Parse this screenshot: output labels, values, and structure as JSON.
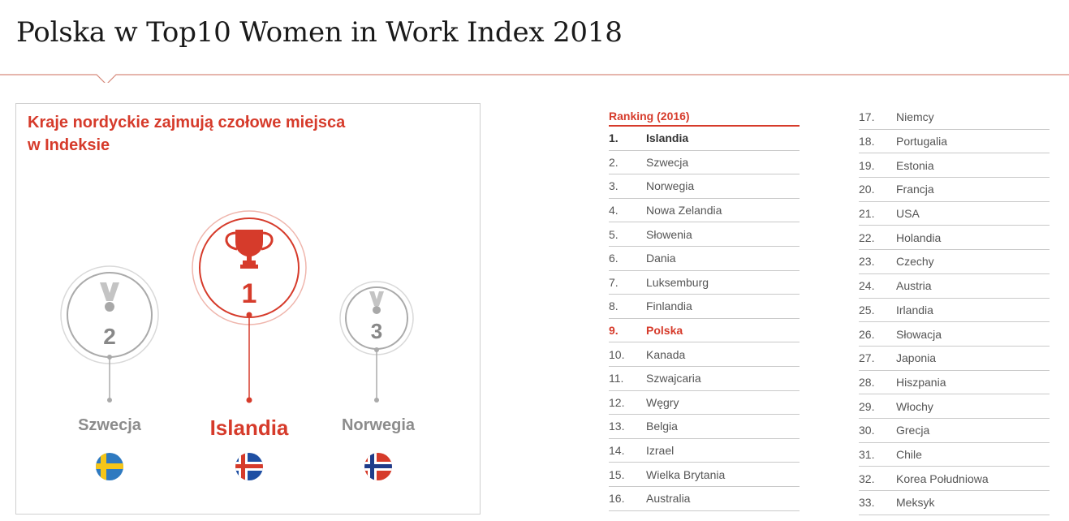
{
  "header": {
    "title": "Polska w Top10 Women in Work Index 2018"
  },
  "podium": {
    "heading_line1": "Kraje nordyckie zajmują czołowe miejsca",
    "heading_line2": "w Indeksie",
    "places": [
      {
        "rank": "2",
        "country": "Szwecja",
        "icon": "silver-medal-icon",
        "flag": "sweden-flag-icon"
      },
      {
        "rank": "1",
        "country": "Islandia",
        "icon": "trophy-icon",
        "flag": "iceland-flag-icon"
      },
      {
        "rank": "3",
        "country": "Norwegia",
        "icon": "bronze-medal-icon",
        "flag": "norway-flag-icon"
      }
    ],
    "colors": {
      "accent": "#d63b2b",
      "muted": "#8c8c8c"
    }
  },
  "ranking": {
    "header": "Ranking (2016)",
    "column1": [
      {
        "num": "1.",
        "country": "Islandia"
      },
      {
        "num": "2.",
        "country": "Szwecja"
      },
      {
        "num": "3.",
        "country": "Norwegia"
      },
      {
        "num": "4.",
        "country": "Nowa Zelandia"
      },
      {
        "num": "5.",
        "country": "Słowenia"
      },
      {
        "num": "6.",
        "country": "Dania"
      },
      {
        "num": "7.",
        "country": "Luksemburg"
      },
      {
        "num": "8.",
        "country": "Finlandia"
      },
      {
        "num": "9.",
        "country": "Polska"
      },
      {
        "num": "10.",
        "country": "Kanada"
      },
      {
        "num": "11.",
        "country": "Szwajcaria"
      },
      {
        "num": "12.",
        "country": "Węgry"
      },
      {
        "num": "13.",
        "country": "Belgia"
      },
      {
        "num": "14.",
        "country": "Izrael"
      },
      {
        "num": "15.",
        "country": "Wielka Brytania"
      },
      {
        "num": "16.",
        "country": "Australia"
      }
    ],
    "column2": [
      {
        "num": "17.",
        "country": "Niemcy"
      },
      {
        "num": "18.",
        "country": "Portugalia"
      },
      {
        "num": "19.",
        "country": "Estonia"
      },
      {
        "num": "20.",
        "country": "Francja"
      },
      {
        "num": "21.",
        "country": "USA"
      },
      {
        "num": "22.",
        "country": "Holandia"
      },
      {
        "num": "23.",
        "country": "Czechy"
      },
      {
        "num": "24.",
        "country": "Austria"
      },
      {
        "num": "25.",
        "country": "Irlandia"
      },
      {
        "num": "26.",
        "country": "Słowacja"
      },
      {
        "num": "27.",
        "country": "Japonia"
      },
      {
        "num": "28.",
        "country": "Hiszpania"
      },
      {
        "num": "29.",
        "country": "Włochy"
      },
      {
        "num": "30.",
        "country": "Grecja"
      },
      {
        "num": "31.",
        "country": "Chile"
      },
      {
        "num": "32.",
        "country": "Korea Południowa"
      },
      {
        "num": "33.",
        "country": "Meksyk"
      }
    ]
  }
}
